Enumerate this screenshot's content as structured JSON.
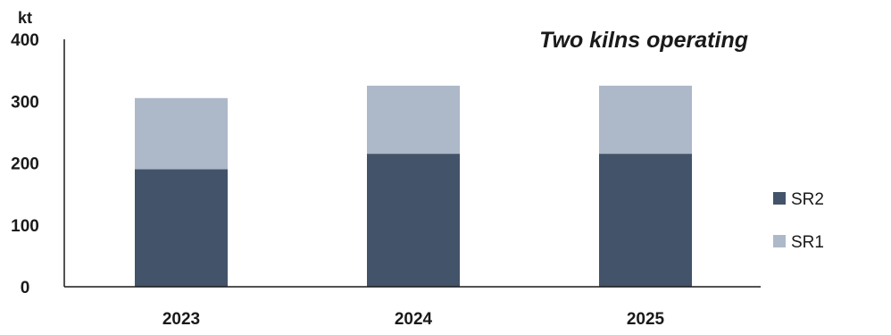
{
  "chart_data": {
    "type": "bar",
    "stacked": true,
    "categories": [
      "2023",
      "2024",
      "2025"
    ],
    "series": [
      {
        "name": "SR2",
        "values": [
          190,
          215,
          215
        ],
        "color": "#435369"
      },
      {
        "name": "SR1",
        "values": [
          115,
          110,
          110
        ],
        "color": "#adb9c9"
      }
    ],
    "title": "",
    "annotation": "Two kilns operating",
    "ylabel": "kt",
    "xlabel": "",
    "ylim": [
      0,
      400
    ],
    "yticks": [
      "0",
      "100",
      "200",
      "300",
      "400"
    ],
    "grid": false,
    "legend_placement": "right"
  }
}
